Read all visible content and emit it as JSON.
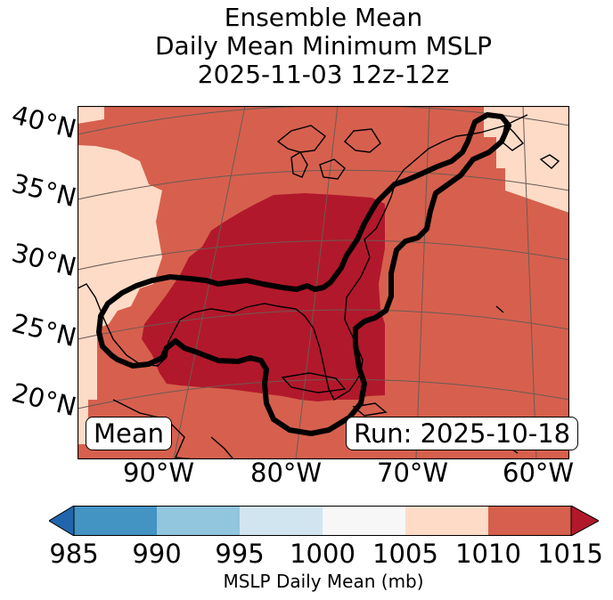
{
  "title": {
    "line1": "Ensemble Mean",
    "line2": "Daily Mean Minimum MSLP",
    "line3": "2025-11-03 12z-12z"
  },
  "map": {
    "lat_labels": [
      "40°N",
      "35°N",
      "30°N",
      "25°N",
      "20°N"
    ],
    "lon_labels": [
      "90°W",
      "80°W",
      "70°W",
      "60°W"
    ],
    "mean_tag": "Mean",
    "run_tag": "Run: 2025-10-18",
    "fill_colors": {
      "lowest_shown": "#b2182b",
      "middle": "#d6604d",
      "highest_shown": "#fddbc7",
      "contour": "#000000",
      "coastline": "#000000",
      "gridline": "#6b5a54"
    }
  },
  "colorbar": {
    "ticks": [
      "985",
      "990",
      "995",
      "1000",
      "1005",
      "1010",
      "1015"
    ],
    "colors": [
      "#2166ac",
      "#4393c3",
      "#92c5de",
      "#d1e5f0",
      "#f7f7f7",
      "#fddbc7",
      "#d6604d",
      "#b2182b"
    ],
    "label": "MSLP Daily Mean (mb)"
  }
}
